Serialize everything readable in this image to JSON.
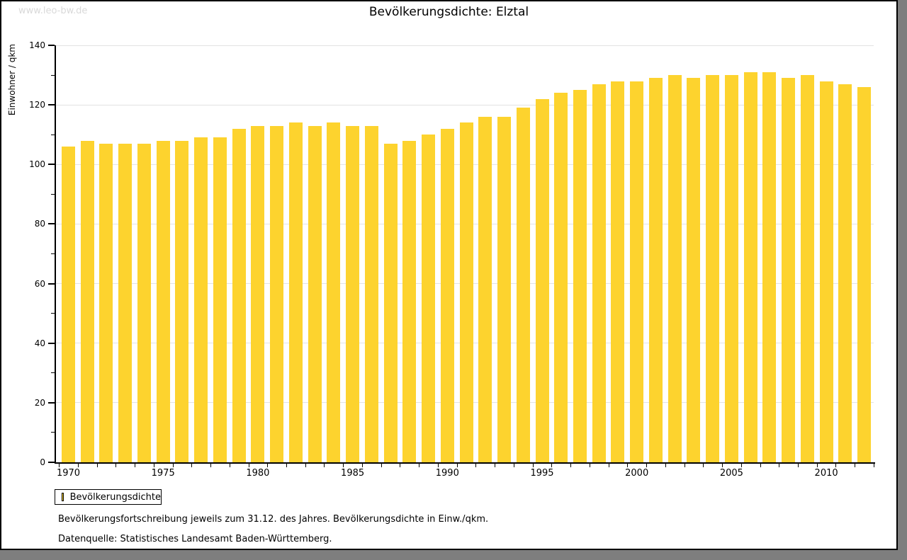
{
  "page": {
    "watermark": "www.leo-bw.de",
    "title": "Bevölkerungsdichte: Elztal",
    "legend_label": "Bevölkerungsdichte",
    "footnote1": "Bevölkerungsfortschreibung jeweils zum 31.12. des Jahres. Bevölkerungsdichte in Einw./qkm.",
    "footnote2": "Datenquelle: Statistisches Landesamt Baden-Württemberg."
  },
  "colors": {
    "bar": "#fdd32e",
    "grid": "#e3e3e3",
    "axis": "#000000",
    "watermark": "#d9d9d9",
    "page_shadow": "#7e7e7e"
  },
  "chart_data": {
    "type": "bar",
    "title": "Bevölkerungsdichte: Elztal",
    "xlabel": "",
    "ylabel": "Einwohner / qkm",
    "series_name": "Bevölkerungsdichte",
    "ylim": [
      0,
      140
    ],
    "y_major_tick_step": 20,
    "y_minor_tick_step": 10,
    "grid": "horizontal",
    "legend_position": "bottom-left",
    "x_labeled_ticks": [
      "1970",
      "1975",
      "1980",
      "1985",
      "1990",
      "1995",
      "2000",
      "2005",
      "2010"
    ],
    "categories": [
      "1970",
      "1971",
      "1972",
      "1973",
      "1974",
      "1975",
      "1976",
      "1977",
      "1978",
      "1979",
      "1980",
      "1981",
      "1982",
      "1983",
      "1984",
      "1985",
      "1986",
      "1987",
      "1988",
      "1989",
      "1990",
      "1991",
      "1992",
      "1993",
      "1994",
      "1995",
      "1996",
      "1997",
      "1998",
      "1999",
      "2000",
      "2001",
      "2002",
      "2003",
      "2004",
      "2005",
      "2006",
      "2007",
      "2008",
      "2009",
      "2010",
      "2011",
      "2012"
    ],
    "values": [
      106,
      108,
      107,
      107,
      107,
      108,
      108,
      109,
      109,
      112,
      113,
      113,
      114,
      113,
      114,
      113,
      113,
      107,
      108,
      110,
      112,
      114,
      116,
      116,
      119,
      122,
      124,
      125,
      127,
      128,
      128,
      129,
      130,
      129,
      130,
      130,
      131,
      131,
      129,
      130,
      128,
      127,
      126
    ]
  }
}
